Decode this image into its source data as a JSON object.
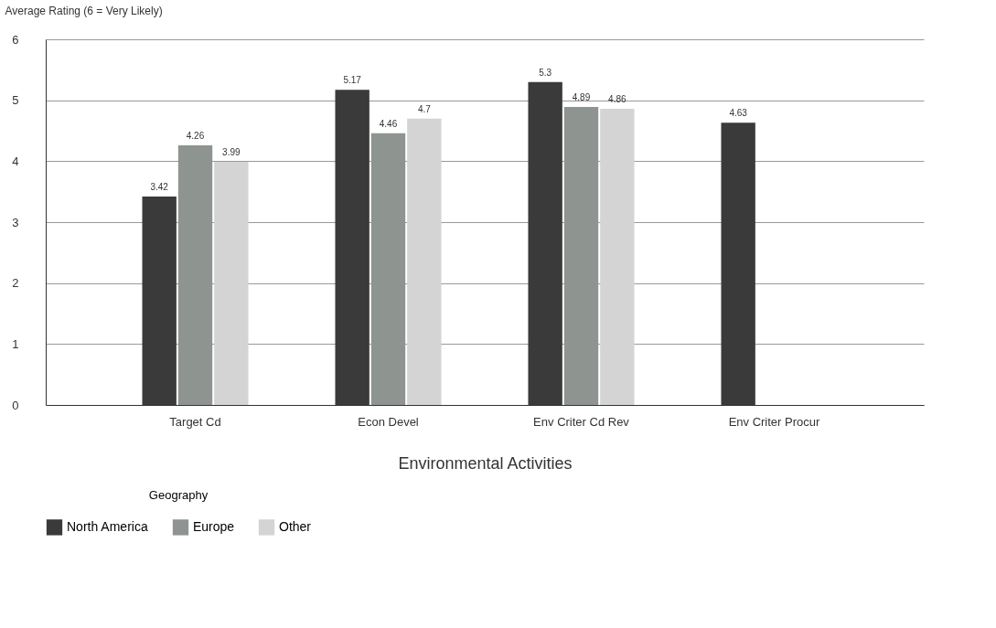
{
  "chart_data": {
    "type": "bar",
    "ylabel": "Average Rating (6 = Very Likely)",
    "xlabel": "Environmental Activities",
    "legend_title": "Geography",
    "categories": [
      "Target Cd",
      "Econ Devel",
      "Env Criter Cd Rev",
      "Env Criter Procur"
    ],
    "series": [
      {
        "name": "North America",
        "color": "#3a3a3a",
        "values": [
          3.42,
          5.17,
          5.3,
          4.63
        ]
      },
      {
        "name": "Europe",
        "color": "#8e9490",
        "values": [
          4.26,
          4.46,
          4.89,
          null
        ]
      },
      {
        "name": "Other",
        "color": "#d4d4d4",
        "values": [
          3.99,
          4.7,
          4.86,
          null
        ]
      }
    ],
    "ylim": [
      0,
      6
    ],
    "yticks": [
      0,
      1,
      2,
      3,
      4,
      5,
      6
    ],
    "grid": "y",
    "legend": "bottom",
    "data_labels": true
  }
}
